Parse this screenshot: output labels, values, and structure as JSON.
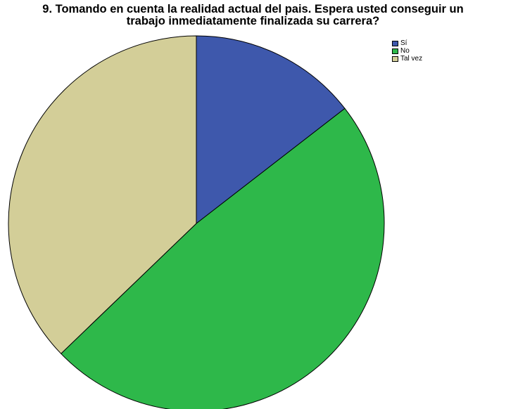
{
  "chart_data": {
    "type": "pie",
    "title_line1": "9. Tomando en cuenta la realidad actual del pais. Espera usted conseguir un",
    "title_line2": "trabajo inmediatamente finalizada su carrera?",
    "categories": [
      "Sí",
      "No",
      "Tal vez"
    ],
    "values": [
      14.5,
      48.3,
      37.2
    ],
    "colors": [
      "#3e58ac",
      "#2eb84a",
      "#d3ce98"
    ],
    "start_angle": "12 o'clock",
    "direction": "clockwise",
    "legend_position": "top-right"
  }
}
